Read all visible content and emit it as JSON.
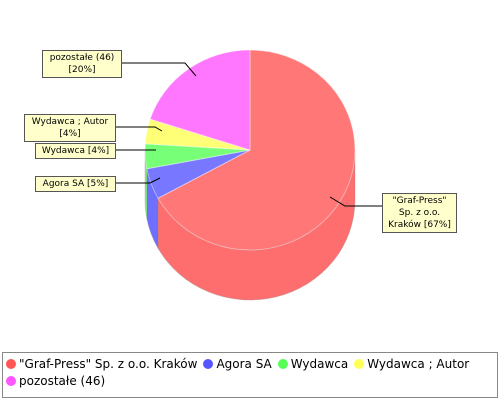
{
  "chart_data": {
    "type": "pie3d",
    "categories": [
      "\"Graf-Press\" Sp. z o.o. Kraków",
      "Agora SA",
      "Wydawca",
      "Wydawca ; Autor",
      "pozostałe (46)"
    ],
    "values": [
      67,
      5,
      4,
      4,
      20
    ],
    "value_labels": [
      "\"Graf-Press\" Sp. z o.o. Kraków [67%]",
      "Agora SA [5%]",
      "Wydawca [4%]",
      "Wydawca ; Autor [4%]",
      "pozostałe (46) [20%]"
    ],
    "colors": [
      "#ff5555",
      "#5555ff",
      "#55ff55",
      "#ffff55",
      "#ff55ff"
    ]
  }
}
